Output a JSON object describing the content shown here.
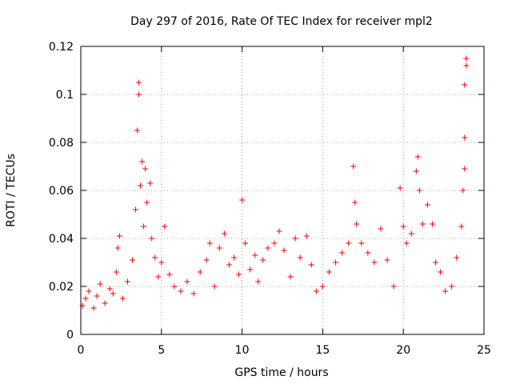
{
  "chart_data": {
    "type": "scatter",
    "title": "Day 297 of 2016, Rate Of TEC Index for receiver mpl2",
    "xlabel": "GPS time / hours",
    "ylabel": "ROTI / TECUs",
    "xlim": [
      0,
      25
    ],
    "ylim": [
      0,
      0.12
    ],
    "xticks": [
      0,
      5,
      10,
      15,
      20,
      25
    ],
    "xtick_labels": [
      "0",
      "5",
      "10",
      "15",
      "20",
      "25"
    ],
    "yticks": [
      0,
      0.02,
      0.04,
      0.06,
      0.08,
      0.1,
      0.12
    ],
    "ytick_labels": [
      "0",
      "0.02",
      "0.04",
      "0.06",
      "0.08",
      "0.1",
      "0.12"
    ],
    "grid": true,
    "marker": "+",
    "color": "#ff0000",
    "series": [
      {
        "name": "ROTI",
        "points": [
          [
            0.1,
            0.012
          ],
          [
            0.3,
            0.015
          ],
          [
            0.5,
            0.018
          ],
          [
            0.8,
            0.011
          ],
          [
            1.0,
            0.016
          ],
          [
            1.2,
            0.021
          ],
          [
            1.5,
            0.013
          ],
          [
            1.8,
            0.019
          ],
          [
            2.0,
            0.017
          ],
          [
            2.2,
            0.026
          ],
          [
            2.3,
            0.036
          ],
          [
            2.4,
            0.041
          ],
          [
            2.6,
            0.015
          ],
          [
            2.9,
            0.022
          ],
          [
            3.2,
            0.031
          ],
          [
            3.4,
            0.052
          ],
          [
            3.5,
            0.085
          ],
          [
            3.6,
            0.1
          ],
          [
            3.6,
            0.105
          ],
          [
            3.7,
            0.062
          ],
          [
            3.8,
            0.072
          ],
          [
            3.9,
            0.045
          ],
          [
            4.0,
            0.069
          ],
          [
            4.1,
            0.055
          ],
          [
            4.3,
            0.063
          ],
          [
            4.4,
            0.04
          ],
          [
            4.6,
            0.032
          ],
          [
            4.8,
            0.024
          ],
          [
            5.0,
            0.03
          ],
          [
            5.2,
            0.045
          ],
          [
            5.5,
            0.025
          ],
          [
            5.8,
            0.02
          ],
          [
            6.2,
            0.018
          ],
          [
            6.6,
            0.022
          ],
          [
            7.0,
            0.017
          ],
          [
            7.4,
            0.026
          ],
          [
            7.8,
            0.031
          ],
          [
            8.0,
            0.038
          ],
          [
            8.3,
            0.02
          ],
          [
            8.6,
            0.036
          ],
          [
            8.9,
            0.042
          ],
          [
            9.2,
            0.029
          ],
          [
            9.5,
            0.032
          ],
          [
            9.8,
            0.025
          ],
          [
            10.0,
            0.056
          ],
          [
            10.2,
            0.038
          ],
          [
            10.5,
            0.027
          ],
          [
            10.8,
            0.033
          ],
          [
            11.0,
            0.022
          ],
          [
            11.3,
            0.031
          ],
          [
            11.6,
            0.036
          ],
          [
            12.0,
            0.038
          ],
          [
            12.3,
            0.043
          ],
          [
            12.6,
            0.035
          ],
          [
            13.0,
            0.024
          ],
          [
            13.3,
            0.04
          ],
          [
            13.6,
            0.032
          ],
          [
            14.0,
            0.041
          ],
          [
            14.3,
            0.029
          ],
          [
            14.6,
            0.018
          ],
          [
            15.0,
            0.02
          ],
          [
            15.4,
            0.026
          ],
          [
            15.8,
            0.03
          ],
          [
            16.2,
            0.034
          ],
          [
            16.6,
            0.038
          ],
          [
            16.9,
            0.07
          ],
          [
            17.0,
            0.055
          ],
          [
            17.1,
            0.046
          ],
          [
            17.4,
            0.038
          ],
          [
            17.8,
            0.034
          ],
          [
            18.2,
            0.03
          ],
          [
            18.6,
            0.044
          ],
          [
            19.0,
            0.031
          ],
          [
            19.4,
            0.02
          ],
          [
            19.8,
            0.061
          ],
          [
            20.0,
            0.045
          ],
          [
            20.2,
            0.038
          ],
          [
            20.5,
            0.042
          ],
          [
            20.8,
            0.068
          ],
          [
            20.9,
            0.074
          ],
          [
            21.0,
            0.06
          ],
          [
            21.2,
            0.046
          ],
          [
            21.5,
            0.054
          ],
          [
            21.8,
            0.046
          ],
          [
            22.0,
            0.03
          ],
          [
            22.3,
            0.026
          ],
          [
            22.6,
            0.018
          ],
          [
            23.0,
            0.02
          ],
          [
            23.3,
            0.032
          ],
          [
            23.6,
            0.045
          ],
          [
            23.7,
            0.06
          ],
          [
            23.8,
            0.069
          ],
          [
            23.8,
            0.082
          ],
          [
            23.8,
            0.104
          ],
          [
            23.9,
            0.112
          ],
          [
            23.9,
            0.115
          ]
        ]
      }
    ]
  }
}
